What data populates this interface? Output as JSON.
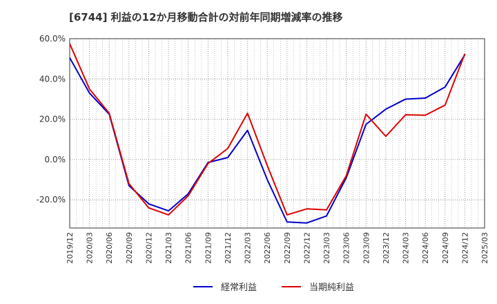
{
  "chart_data": {
    "type": "line",
    "title": "[6744]  利益の12か月移動合計の対前年同期増減率の推移",
    "xlabel": "",
    "ylabel": "",
    "ylim": [
      -34,
      60
    ],
    "y_ticks": [
      60,
      40,
      20,
      0,
      -20
    ],
    "y_tick_labels": [
      "60.0%",
      "40.0%",
      "20.0%",
      "0.0%",
      "-20.0%"
    ],
    "categories": [
      "2019/12",
      "2020/03",
      "2020/06",
      "2020/09",
      "2020/12",
      "2021/03",
      "2021/06",
      "2021/09",
      "2021/12",
      "2022/03",
      "2022/06",
      "2022/09",
      "2022/12",
      "2023/03",
      "2023/06",
      "2023/09",
      "2023/12",
      "2024/03",
      "2024/06",
      "2024/09",
      "2024/12",
      "2025/03"
    ],
    "series": [
      {
        "name": "経常利益",
        "color": "#0000cc",
        "values": [
          50.5,
          33,
          22.5,
          -13,
          -22,
          -25.5,
          -17,
          -1.5,
          1,
          14.5,
          -10,
          -31,
          -31.5,
          -28,
          -9,
          17.5,
          25,
          30,
          30.5,
          36,
          52,
          null
        ]
      },
      {
        "name": "当期純利益",
        "color": "#dd0000",
        "values": [
          57.5,
          35,
          23,
          -12,
          -24,
          -27.5,
          -18,
          -2,
          5.5,
          23,
          -3,
          -27.5,
          -24.5,
          -25,
          -8,
          22.5,
          11.5,
          22.2,
          22,
          27,
          52.5,
          null
        ]
      }
    ],
    "legend": "bottom-center"
  }
}
